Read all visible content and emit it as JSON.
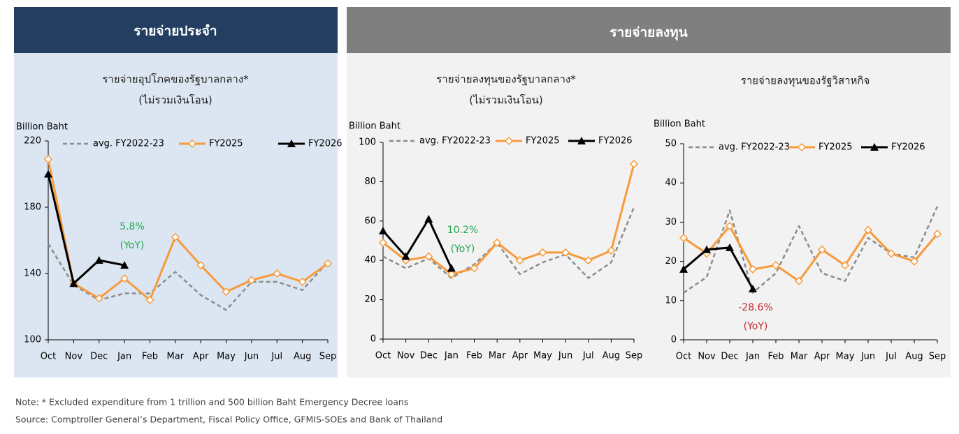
{
  "panels": [
    {
      "title": "รายจ่ายประจำ"
    },
    {
      "title": "รายจ่ายลงทุน"
    }
  ],
  "notes": [
    "Note: * Excluded expenditure from 1 trillion and 500 billion Baht Emergency Decree loans",
    "Source: Comptroller General’s Department, Fiscal Policy Office, GFMIS-SOEs and Bank of Thailand"
  ],
  "chart_data": [
    {
      "type": "line",
      "title": [
        "รายจ่ายอุปโภคของรัฐบาลกลาง*",
        "(ไม่รวมเงินโอน)"
      ],
      "ylabel": "Billion Baht",
      "categories": [
        "Oct",
        "Nov",
        "Dec",
        "Jan",
        "Feb",
        "Mar",
        "Apr",
        "May",
        "Jun",
        "Jul",
        "Aug",
        "Sep"
      ],
      "ylim": [
        100,
        220
      ],
      "yticks": [
        100,
        140,
        180,
        220
      ],
      "series": [
        {
          "name": "avg. FY2022-23",
          "color": "#8c8c8c",
          "style": "dashed",
          "values": [
            158,
            133,
            124,
            128,
            128,
            141,
            127,
            118,
            135,
            135,
            130,
            147
          ]
        },
        {
          "name": "FY2025",
          "color": "#f79a3a",
          "marker": "diamond",
          "values": [
            209,
            134,
            125,
            137,
            124,
            162,
            145,
            129,
            136,
            140,
            135,
            146
          ]
        },
        {
          "name": "FY2026",
          "color": "#000000",
          "marker": "triangle",
          "values": [
            200,
            134,
            148,
            145,
            null,
            null,
            null,
            null,
            null,
            null,
            null,
            null
          ]
        }
      ],
      "annotations": [
        "5.8%",
        "(YoY)"
      ],
      "annotation_color": "#22a74d"
    },
    {
      "type": "line",
      "title": [
        "รายจ่ายลงทุนของรัฐบาลกลาง*",
        "(ไม่รวมเงินโอน)"
      ],
      "ylabel": "Billion Baht",
      "categories": [
        "Oct",
        "Nov",
        "Dec",
        "Jan",
        "Feb",
        "Mar",
        "Apr",
        "May",
        "Jun",
        "Jul",
        "Aug",
        "Sep"
      ],
      "ylim": [
        0,
        100
      ],
      "yticks": [
        0,
        20,
        40,
        60,
        80,
        100
      ],
      "series": [
        {
          "name": "avg. FY2022-23",
          "color": "#8c8c8c",
          "style": "dashed",
          "values": [
            42,
            36,
            41,
            31,
            38,
            49,
            33,
            39,
            43,
            31,
            39,
            67
          ]
        },
        {
          "name": "FY2025",
          "color": "#f79a3a",
          "marker": "diamond",
          "values": [
            49,
            40,
            42,
            33,
            36,
            49,
            40,
            44,
            44,
            40,
            45,
            89
          ]
        },
        {
          "name": "FY2026",
          "color": "#000000",
          "marker": "triangle",
          "values": [
            55,
            42,
            61,
            36,
            null,
            null,
            null,
            null,
            null,
            null,
            null,
            null
          ]
        }
      ],
      "annotations": [
        "10.2%",
        "(YoY)"
      ],
      "annotation_color": "#22a74d"
    },
    {
      "type": "line",
      "title": [
        "รายจ่ายลงทุนของรัฐวิสาหกิจ"
      ],
      "ylabel": "Billion Baht",
      "categories": [
        "Oct",
        "Nov",
        "Dec",
        "Jan",
        "Feb",
        "Mar",
        "Apr",
        "May",
        "Jun",
        "Jul",
        "Aug",
        "Sep"
      ],
      "ylim": [
        0,
        50
      ],
      "yticks": [
        0,
        10,
        20,
        30,
        40,
        50
      ],
      "series": [
        {
          "name": "avg. FY2022-23",
          "color": "#8c8c8c",
          "style": "dashed",
          "values": [
            12,
            16,
            33,
            12,
            17,
            29,
            17,
            15,
            26,
            22,
            21,
            34
          ]
        },
        {
          "name": "FY2025",
          "color": "#f79a3a",
          "marker": "diamond",
          "values": [
            26,
            22,
            29,
            18,
            19,
            15,
            23,
            19,
            28,
            22,
            20,
            27
          ]
        },
        {
          "name": "FY2026",
          "color": "#000000",
          "marker": "triangle",
          "values": [
            18,
            23,
            23.5,
            13,
            null,
            null,
            null,
            null,
            null,
            null,
            null,
            null
          ]
        }
      ],
      "annotations": [
        "-28.6%",
        "(YoY)"
      ],
      "annotation_color": "#c0282d"
    }
  ]
}
